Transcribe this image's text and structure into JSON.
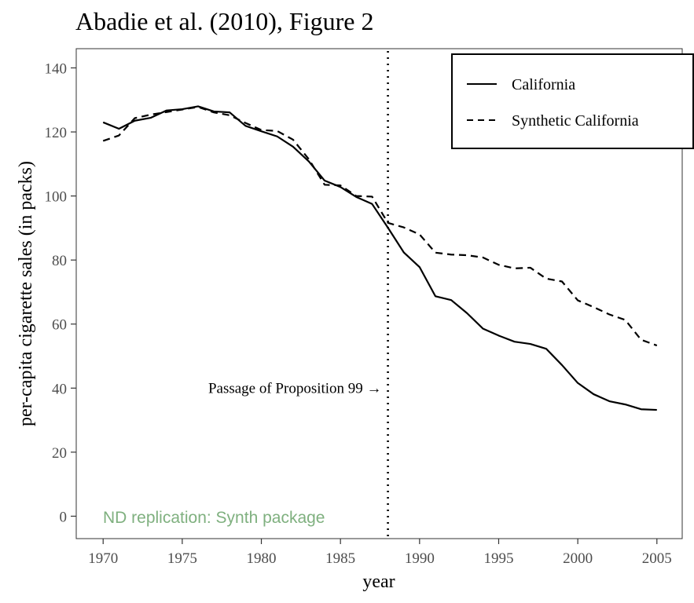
{
  "chart_data": {
    "type": "line",
    "title": "Abadie et al. (2010), Figure 2",
    "xlabel": "year",
    "ylabel": "per-capita cigarette sales (in packs)",
    "xlim": [
      1968.3,
      2006.6
    ],
    "ylim": [
      -7,
      146
    ],
    "x_ticks": [
      1970,
      1975,
      1980,
      1985,
      1990,
      1995,
      2000,
      2005
    ],
    "y_ticks": [
      0,
      20,
      40,
      60,
      80,
      100,
      120,
      140
    ],
    "grid": false,
    "legend_position": "top-right",
    "x": [
      1970,
      1971,
      1972,
      1973,
      1974,
      1975,
      1976,
      1977,
      1978,
      1979,
      1980,
      1981,
      1982,
      1983,
      1984,
      1985,
      1986,
      1987,
      1988,
      1989,
      1990,
      1991,
      1992,
      1993,
      1994,
      1995,
      1996,
      1997,
      1998,
      1999,
      2000,
      2001,
      2002,
      2003,
      2004,
      2005
    ],
    "series": [
      {
        "name": "California",
        "dash": "solid",
        "values": [
          123.0,
          121.0,
          123.5,
          124.4,
          126.7,
          127.1,
          128.0,
          126.4,
          126.1,
          121.9,
          120.2,
          118.6,
          115.4,
          110.8,
          104.8,
          102.8,
          99.7,
          97.5,
          90.1,
          82.4,
          77.8,
          68.7,
          67.5,
          63.4,
          58.6,
          56.4,
          54.5,
          53.8,
          52.3,
          47.2,
          41.6,
          38.1,
          35.9,
          34.9,
          33.4,
          33.2
        ]
      },
      {
        "name": "Synthetic California",
        "dash": "dashed",
        "values": [
          117.2,
          118.9,
          124.3,
          125.4,
          126.2,
          127.0,
          127.8,
          126.1,
          125.2,
          122.8,
          120.6,
          120.3,
          117.6,
          111.5,
          103.5,
          103.3,
          100.0,
          99.8,
          91.6,
          90.2,
          88.0,
          82.3,
          81.7,
          81.5,
          80.8,
          78.5,
          77.4,
          77.6,
          74.2,
          73.3,
          67.4,
          65.3,
          63.0,
          61.3,
          55.1,
          53.3
        ]
      }
    ],
    "annotations": [
      {
        "text": "Passage of Proposition 99 →",
        "x": 1988,
        "y": 40
      }
    ],
    "vline": {
      "x": 1988,
      "style": "dotted"
    },
    "caption": "ND replication: Synth package",
    "caption_color": "#7fb07f"
  }
}
